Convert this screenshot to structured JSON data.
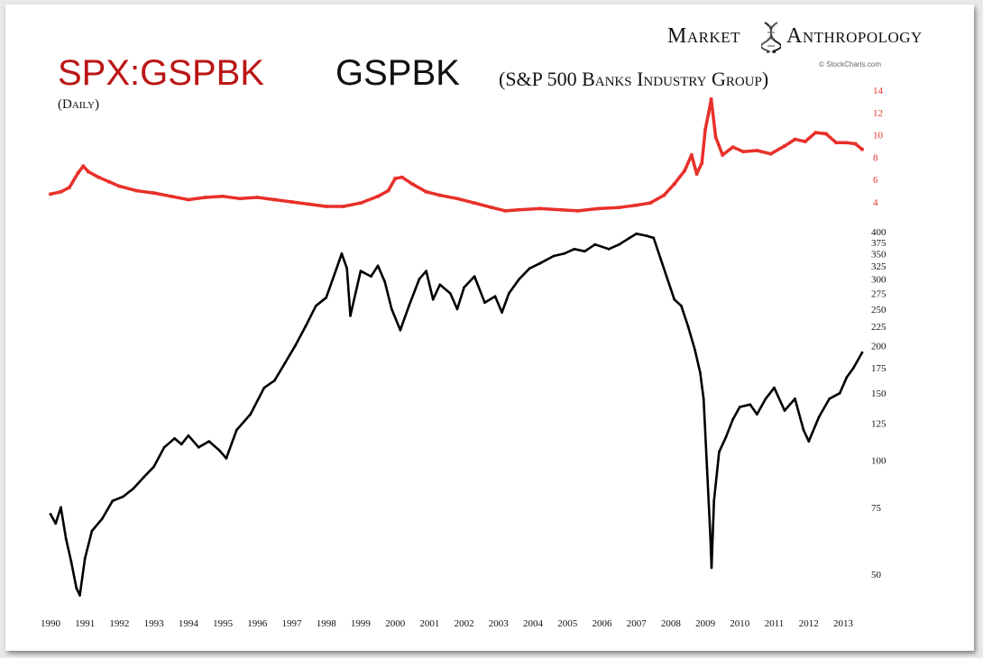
{
  "branding": {
    "left": "Market",
    "right": "Anthropology",
    "credit": "© StockCharts.com",
    "icon": "dna-helix-icon"
  },
  "title": {
    "ticker": "SPX:GSPBK",
    "symbol": "GSPBK",
    "description": "(S&P 500 Banks Industry Group)",
    "period": "(Daily)"
  },
  "colors": {
    "ratio_series": "#e8302a",
    "price_series": "#000000",
    "ticker_text": "#bb1616",
    "frame_bg": "#ffffff"
  },
  "chart_data": [
    {
      "type": "scatter",
      "name": "ratio",
      "yaxis": {
        "scale": "linear",
        "ticks": [
          4,
          6,
          8,
          10,
          12,
          14
        ],
        "tick_labels": [
          "4",
          "6",
          "8",
          "10",
          "12",
          "14"
        ],
        "tick_color": "#e8302a",
        "position": "right"
      },
      "x_range": [
        1990.0,
        2013.55
      ],
      "points": [
        [
          1990.0,
          4.7
        ],
        [
          1990.3,
          4.9
        ],
        [
          1990.55,
          5.3
        ],
        [
          1990.8,
          6.6
        ],
        [
          1990.95,
          7.2
        ],
        [
          1991.1,
          6.7
        ],
        [
          1991.4,
          6.2
        ],
        [
          1991.7,
          5.8
        ],
        [
          1992.0,
          5.4
        ],
        [
          1992.5,
          5.0
        ],
        [
          1993.0,
          4.8
        ],
        [
          1993.5,
          4.5
        ],
        [
          1994.0,
          4.2
        ],
        [
          1994.5,
          4.4
        ],
        [
          1995.0,
          4.5
        ],
        [
          1995.5,
          4.3
        ],
        [
          1996.0,
          4.4
        ],
        [
          1996.5,
          4.2
        ],
        [
          1997.0,
          4.0
        ],
        [
          1997.5,
          3.8
        ],
        [
          1998.0,
          3.6
        ],
        [
          1998.5,
          3.6
        ],
        [
          1999.0,
          3.9
        ],
        [
          1999.5,
          4.5
        ],
        [
          1999.8,
          5.0
        ],
        [
          2000.0,
          6.1
        ],
        [
          2000.2,
          6.2
        ],
        [
          2000.5,
          5.6
        ],
        [
          2000.9,
          4.9
        ],
        [
          2001.3,
          4.6
        ],
        [
          2001.8,
          4.3
        ],
        [
          2002.3,
          3.9
        ],
        [
          2002.8,
          3.5
        ],
        [
          2003.2,
          3.2
        ],
        [
          2003.6,
          3.3
        ],
        [
          2004.2,
          3.4
        ],
        [
          2004.8,
          3.3
        ],
        [
          2005.3,
          3.2
        ],
        [
          2005.9,
          3.4
        ],
        [
          2006.5,
          3.5
        ],
        [
          2007.0,
          3.7
        ],
        [
          2007.4,
          3.9
        ],
        [
          2007.8,
          4.6
        ],
        [
          2008.1,
          5.6
        ],
        [
          2008.4,
          6.8
        ],
        [
          2008.6,
          8.2
        ],
        [
          2008.75,
          6.5
        ],
        [
          2008.9,
          7.5
        ],
        [
          2009.0,
          10.5
        ],
        [
          2009.1,
          12.0
        ],
        [
          2009.17,
          13.2
        ],
        [
          2009.3,
          9.8
        ],
        [
          2009.5,
          8.2
        ],
        [
          2009.8,
          8.9
        ],
        [
          2010.1,
          8.5
        ],
        [
          2010.5,
          8.6
        ],
        [
          2010.9,
          8.3
        ],
        [
          2011.3,
          9.0
        ],
        [
          2011.6,
          9.6
        ],
        [
          2011.9,
          9.4
        ],
        [
          2012.2,
          10.2
        ],
        [
          2012.5,
          10.1
        ],
        [
          2012.8,
          9.3
        ],
        [
          2013.1,
          9.3
        ],
        [
          2013.35,
          9.2
        ],
        [
          2013.55,
          8.7
        ]
      ]
    },
    {
      "type": "line",
      "name": "GSPBK",
      "yaxis": {
        "scale": "log",
        "ticks": [
          50,
          75,
          100,
          125,
          150,
          175,
          200,
          225,
          250,
          275,
          300,
          325,
          350,
          375,
          400
        ],
        "tick_labels": [
          "50",
          "75",
          "100",
          "125",
          "150",
          "175",
          "200",
          "225",
          "250",
          "275",
          "300",
          "325",
          "350",
          "375",
          "400"
        ],
        "position": "right"
      },
      "x": {
        "ticks": [
          1990,
          1991,
          1992,
          1993,
          1994,
          1995,
          1996,
          1997,
          1998,
          1999,
          2000,
          2001,
          2002,
          2003,
          2004,
          2005,
          2006,
          2007,
          2008,
          2009,
          2010,
          2011,
          2012,
          2013
        ],
        "tick_labels": [
          "1990",
          "1991",
          "1992",
          "1993",
          "1994",
          "1995",
          "1996",
          "1997",
          "1998",
          "1999",
          "2000",
          "2001",
          "2002",
          "2003",
          "2004",
          "2005",
          "2006",
          "2007",
          "2008",
          "2009",
          "2010",
          "2011",
          "2012",
          "2013"
        ],
        "range": [
          1990.0,
          2013.55
        ]
      },
      "points": [
        [
          1990.0,
          72
        ],
        [
          1990.15,
          68
        ],
        [
          1990.3,
          75
        ],
        [
          1990.45,
          62
        ],
        [
          1990.6,
          54
        ],
        [
          1990.75,
          46
        ],
        [
          1990.85,
          44
        ],
        [
          1991.0,
          55
        ],
        [
          1991.2,
          65
        ],
        [
          1991.5,
          70
        ],
        [
          1991.8,
          78
        ],
        [
          1992.1,
          80
        ],
        [
          1992.4,
          84
        ],
        [
          1992.7,
          90
        ],
        [
          1993.0,
          96
        ],
        [
          1993.3,
          108
        ],
        [
          1993.6,
          114
        ],
        [
          1993.8,
          110
        ],
        [
          1994.0,
          116
        ],
        [
          1994.3,
          108
        ],
        [
          1994.6,
          112
        ],
        [
          1994.9,
          106
        ],
        [
          1995.1,
          101
        ],
        [
          1995.4,
          120
        ],
        [
          1995.8,
          132
        ],
        [
          1996.2,
          155
        ],
        [
          1996.5,
          162
        ],
        [
          1996.8,
          180
        ],
        [
          1997.1,
          200
        ],
        [
          1997.4,
          225
        ],
        [
          1997.7,
          255
        ],
        [
          1998.0,
          268
        ],
        [
          1998.3,
          320
        ],
        [
          1998.45,
          350
        ],
        [
          1998.6,
          320
        ],
        [
          1998.7,
          240
        ],
        [
          1998.85,
          275
        ],
        [
          1999.0,
          315
        ],
        [
          1999.3,
          305
        ],
        [
          1999.5,
          325
        ],
        [
          1999.7,
          295
        ],
        [
          1999.9,
          250
        ],
        [
          2000.15,
          220
        ],
        [
          2000.4,
          255
        ],
        [
          2000.7,
          300
        ],
        [
          2000.9,
          315
        ],
        [
          2001.1,
          265
        ],
        [
          2001.3,
          290
        ],
        [
          2001.6,
          275
        ],
        [
          2001.8,
          250
        ],
        [
          2002.0,
          285
        ],
        [
          2002.3,
          305
        ],
        [
          2002.6,
          260
        ],
        [
          2002.9,
          270
        ],
        [
          2003.1,
          245
        ],
        [
          2003.3,
          275
        ],
        [
          2003.6,
          300
        ],
        [
          2003.9,
          320
        ],
        [
          2004.2,
          330
        ],
        [
          2004.6,
          345
        ],
        [
          2004.9,
          350
        ],
        [
          2005.2,
          360
        ],
        [
          2005.5,
          355
        ],
        [
          2005.8,
          370
        ],
        [
          2006.2,
          360
        ],
        [
          2006.5,
          370
        ],
        [
          2006.8,
          385
        ],
        [
          2007.0,
          395
        ],
        [
          2007.3,
          390
        ],
        [
          2007.5,
          385
        ],
        [
          2007.7,
          340
        ],
        [
          2007.9,
          300
        ],
        [
          2008.1,
          265
        ],
        [
          2008.3,
          255
        ],
        [
          2008.5,
          225
        ],
        [
          2008.7,
          195
        ],
        [
          2008.85,
          170
        ],
        [
          2008.95,
          145
        ],
        [
          2009.05,
          95
        ],
        [
          2009.15,
          62
        ],
        [
          2009.18,
          52
        ],
        [
          2009.25,
          78
        ],
        [
          2009.4,
          105
        ],
        [
          2009.6,
          115
        ],
        [
          2009.8,
          128
        ],
        [
          2010.0,
          138
        ],
        [
          2010.3,
          140
        ],
        [
          2010.5,
          132
        ],
        [
          2010.75,
          145
        ],
        [
          2011.0,
          155
        ],
        [
          2011.3,
          135
        ],
        [
          2011.6,
          145
        ],
        [
          2011.85,
          120
        ],
        [
          2012.0,
          112
        ],
        [
          2012.3,
          130
        ],
        [
          2012.6,
          145
        ],
        [
          2012.9,
          150
        ],
        [
          2013.1,
          165
        ],
        [
          2013.3,
          175
        ],
        [
          2013.55,
          192
        ]
      ]
    }
  ]
}
